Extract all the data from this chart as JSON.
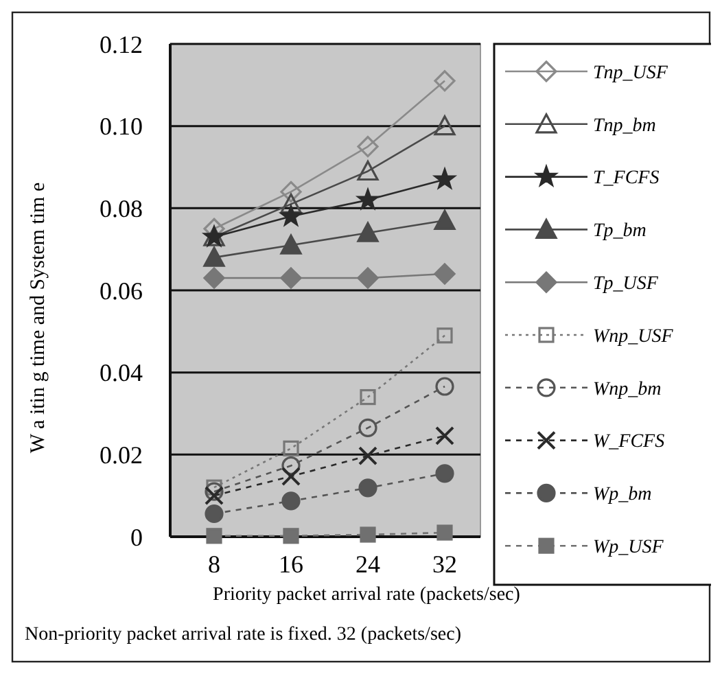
{
  "chart_data": {
    "type": "line",
    "xlabel": "Priority packet arrival rate (packets/sec)",
    "ylabel": "W a itin g time and   System tim e",
    "categories": [
      "8",
      "16",
      "24",
      "32"
    ],
    "ylim": [
      0,
      0.12
    ],
    "yticks": [
      0,
      {
        "value": 0.02,
        "label": "0.02"
      },
      {
        "value": 0.04,
        "label": "0.04"
      },
      {
        "value": 0.06,
        "label": "0.06"
      },
      {
        "value": 0.08,
        "label": "0.08"
      },
      {
        "value": 0.1,
        "label": "0.10"
      },
      {
        "value": 0.12,
        "label": "0.12"
      }
    ],
    "grid": "y",
    "legend": "right",
    "annotations": [
      "Non-priority packet arrival rate is fixed.  32 (packets/sec)"
    ],
    "series": [
      {
        "name": "Tnp_USF",
        "color": "#8a8a8a",
        "marker": "diamond",
        "line_style": "solid",
        "values": [
          0.075,
          0.084,
          0.095,
          0.111
        ]
      },
      {
        "name": "Tnp_bm",
        "color": "#4a4a4a",
        "marker": "triangle",
        "line_style": "solid",
        "values": [
          0.073,
          0.081,
          0.089,
          0.1
        ]
      },
      {
        "name": "T_FCFS",
        "color": "#2a2a2a",
        "marker": "star",
        "line_style": "solid",
        "values": [
          0.073,
          0.078,
          0.082,
          0.087
        ]
      },
      {
        "name": "Tp_bm",
        "color": "#4a4a4a",
        "marker": "triangle",
        "line_style": "solid",
        "values": [
          0.068,
          0.071,
          0.074,
          0.077
        ]
      },
      {
        "name": "Tp_USF",
        "color": "#777777",
        "marker": "diamond",
        "line_style": "solid",
        "values": [
          0.063,
          0.063,
          0.063,
          0.064
        ]
      },
      {
        "name": "Wnp_USF",
        "color": "#777777",
        "marker": "square",
        "line_style": "dotted",
        "values": [
          0.012,
          0.0215,
          0.034,
          0.049
        ]
      },
      {
        "name": "Wnp_bm",
        "color": "#555555",
        "marker": "circle",
        "line_style": "dashed",
        "values": [
          0.011,
          0.0173,
          0.0265,
          0.0366
        ]
      },
      {
        "name": "W_FCFS",
        "color": "#2a2a2a",
        "marker": "cross",
        "line_style": "dashed",
        "values": [
          0.01,
          0.0147,
          0.0197,
          0.0246
        ]
      },
      {
        "name": "Wp_bm",
        "color": "#555555",
        "marker": "circle",
        "line_style": "dashed",
        "values": [
          0.0056,
          0.0087,
          0.0119,
          0.0154
        ]
      },
      {
        "name": "Wp_USF",
        "color": "#707070",
        "marker": "square",
        "line_style": "dashed",
        "values": [
          0.0002,
          0.0002,
          0.0005,
          0.001
        ]
      }
    ]
  }
}
